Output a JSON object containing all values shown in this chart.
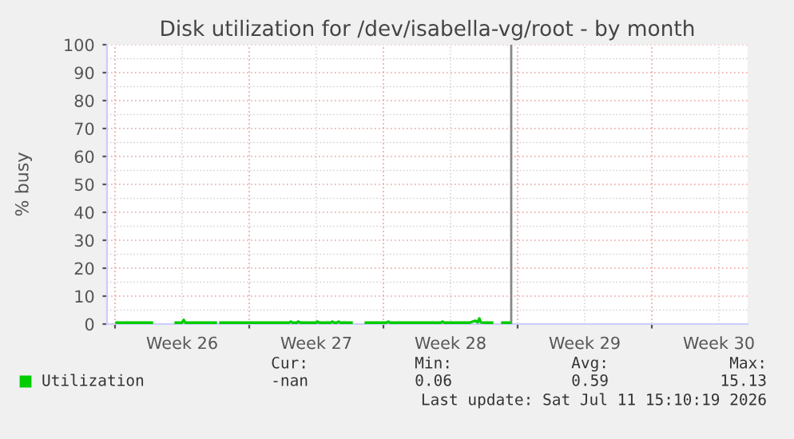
{
  "chart_data": {
    "type": "line",
    "title": "Disk utilization for /dev/isabella-vg/root - by month",
    "ylabel": "% busy",
    "x": [
      "2026-06-22T02:00",
      "2026-06-23T22:00",
      "2026-06-24T12:00",
      "2026-06-25T04:00",
      "2026-06-25T12:00",
      "2026-06-25T14:00",
      "2026-06-25T16:00",
      "2026-06-27T06:00",
      "2026-06-27T09:00",
      "2026-06-27T12:00",
      "2026-07-01T02:00",
      "2026-07-01T04:00",
      "2026-07-01T06:00",
      "2026-07-01T12:00",
      "2026-07-01T13:00",
      "2026-07-01T16:00",
      "2026-07-02T12:00",
      "2026-07-02T13:00",
      "2026-07-02T16:00",
      "2026-07-03T06:00",
      "2026-07-03T08:00",
      "2026-07-03T10:00",
      "2026-07-03T14:00",
      "2026-07-03T16:00",
      "2026-07-03T18:00",
      "2026-07-04T08:00",
      "2026-07-04T16:00",
      "2026-07-05T02:00",
      "2026-07-06T04:00",
      "2026-07-06T06:00",
      "2026-07-06T08:00",
      "2026-07-09T00:00",
      "2026-07-09T02:00",
      "2026-07-09T04:00",
      "2026-07-10T12:00",
      "2026-07-10T19:00",
      "2026-07-10T22:00",
      "2026-07-11T00:00",
      "2026-07-11T02:00",
      "2026-07-11T07:00",
      "2026-07-11T16:00",
      "2026-07-12T00:00",
      "2026-07-12T05:00",
      "2026-07-12T14:00"
    ],
    "series": [
      {
        "name": "Utilization",
        "color": "#00cc00",
        "values": [
          0.5,
          0.5,
          null,
          0.5,
          0.5,
          1.5,
          0.5,
          0.5,
          null,
          0.5,
          0.5,
          0.9,
          0.5,
          0.5,
          0.9,
          0.5,
          0.5,
          0.9,
          0.5,
          0.5,
          0.9,
          0.5,
          0.5,
          0.9,
          0.5,
          0.5,
          null,
          0.5,
          0.5,
          0.9,
          0.5,
          0.5,
          0.9,
          0.5,
          0.5,
          1.2,
          0.6,
          2.0,
          0.6,
          0.5,
          0.5,
          null,
          0.5,
          0.5
        ]
      }
    ],
    "xlim": [
      "2026-06-21T14:00",
      "2026-07-25T00:00"
    ],
    "ylim": [
      0,
      100
    ],
    "xticks": [
      {
        "value": "2026-06-22",
        "label": null
      },
      {
        "value": "2026-06-25T12:00",
        "label": "Week 26"
      },
      {
        "value": "2026-06-29",
        "label": null
      },
      {
        "value": "2026-07-02T12:00",
        "label": "Week 27"
      },
      {
        "value": "2026-07-06",
        "label": null
      },
      {
        "value": "2026-07-09T12:00",
        "label": "Week 28"
      },
      {
        "value": "2026-07-13",
        "label": null
      },
      {
        "value": "2026-07-16T12:00",
        "label": "Week 29"
      },
      {
        "value": "2026-07-20",
        "label": null
      },
      {
        "value": "2026-07-23T12:00",
        "label": "Week 30"
      }
    ],
    "yticks": [
      0,
      10,
      20,
      30,
      40,
      50,
      60,
      70,
      80,
      90,
      100
    ],
    "ref_lines": [
      {
        "axis": "x",
        "value": "2026-07-12T16:00",
        "color": "#888888"
      }
    ],
    "grid": true,
    "legend": "bottom",
    "annotations": [
      "Cur:",
      "Min:",
      "Avg:",
      "Max:",
      "-nan",
      "0.06",
      "0.59",
      "15.13",
      "Last update: Sat Jul 11 15:10:19 2026"
    ]
  }
}
